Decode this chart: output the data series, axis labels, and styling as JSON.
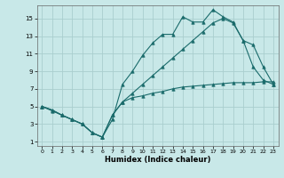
{
  "xlabel": "Humidex (Indice chaleur)",
  "bg_color": "#c8e8e8",
  "grid_color": "#aacece",
  "line_color": "#1a6b6b",
  "xlim": [
    -0.5,
    23.5
  ],
  "ylim": [
    0.5,
    16.5
  ],
  "xticks": [
    0,
    1,
    2,
    3,
    4,
    5,
    6,
    7,
    8,
    9,
    10,
    11,
    12,
    13,
    14,
    15,
    16,
    17,
    18,
    19,
    20,
    21,
    22,
    23
  ],
  "yticks": [
    1,
    3,
    5,
    7,
    9,
    11,
    13,
    15
  ],
  "line1_x": [
    0,
    1,
    2,
    3,
    4,
    5,
    6,
    7,
    8,
    9,
    10,
    11,
    12,
    13,
    14,
    15,
    16,
    17,
    18,
    19,
    20,
    21,
    22,
    23
  ],
  "line1_y": [
    5.0,
    4.5,
    4.0,
    3.5,
    3.0,
    2.0,
    1.5,
    3.5,
    7.5,
    9.0,
    10.8,
    12.2,
    13.2,
    13.2,
    15.2,
    14.6,
    14.6,
    16.0,
    15.2,
    14.6,
    12.5,
    9.5,
    8.0,
    7.5
  ],
  "line2_x": [
    0,
    1,
    2,
    3,
    4,
    5,
    6,
    7,
    8,
    9,
    10,
    11,
    12,
    13,
    14,
    15,
    16,
    17,
    18,
    19,
    20,
    21,
    22,
    23
  ],
  "line2_y": [
    5.0,
    4.6,
    4.0,
    3.5,
    3.0,
    2.0,
    1.5,
    4.0,
    5.5,
    6.5,
    7.5,
    8.5,
    9.5,
    10.5,
    11.5,
    12.5,
    13.5,
    14.5,
    15.0,
    14.5,
    12.5,
    12.0,
    9.5,
    7.5
  ],
  "line3_x": [
    0,
    1,
    2,
    3,
    4,
    5,
    6,
    7,
    8,
    9,
    10,
    11,
    12,
    13,
    14,
    15,
    16,
    17,
    18,
    19,
    20,
    21,
    22,
    23
  ],
  "line3_y": [
    5.0,
    4.6,
    4.0,
    3.5,
    3.0,
    2.0,
    1.5,
    4.0,
    5.5,
    6.0,
    6.2,
    6.5,
    6.7,
    7.0,
    7.2,
    7.3,
    7.4,
    7.5,
    7.6,
    7.7,
    7.7,
    7.7,
    7.8,
    7.8
  ]
}
